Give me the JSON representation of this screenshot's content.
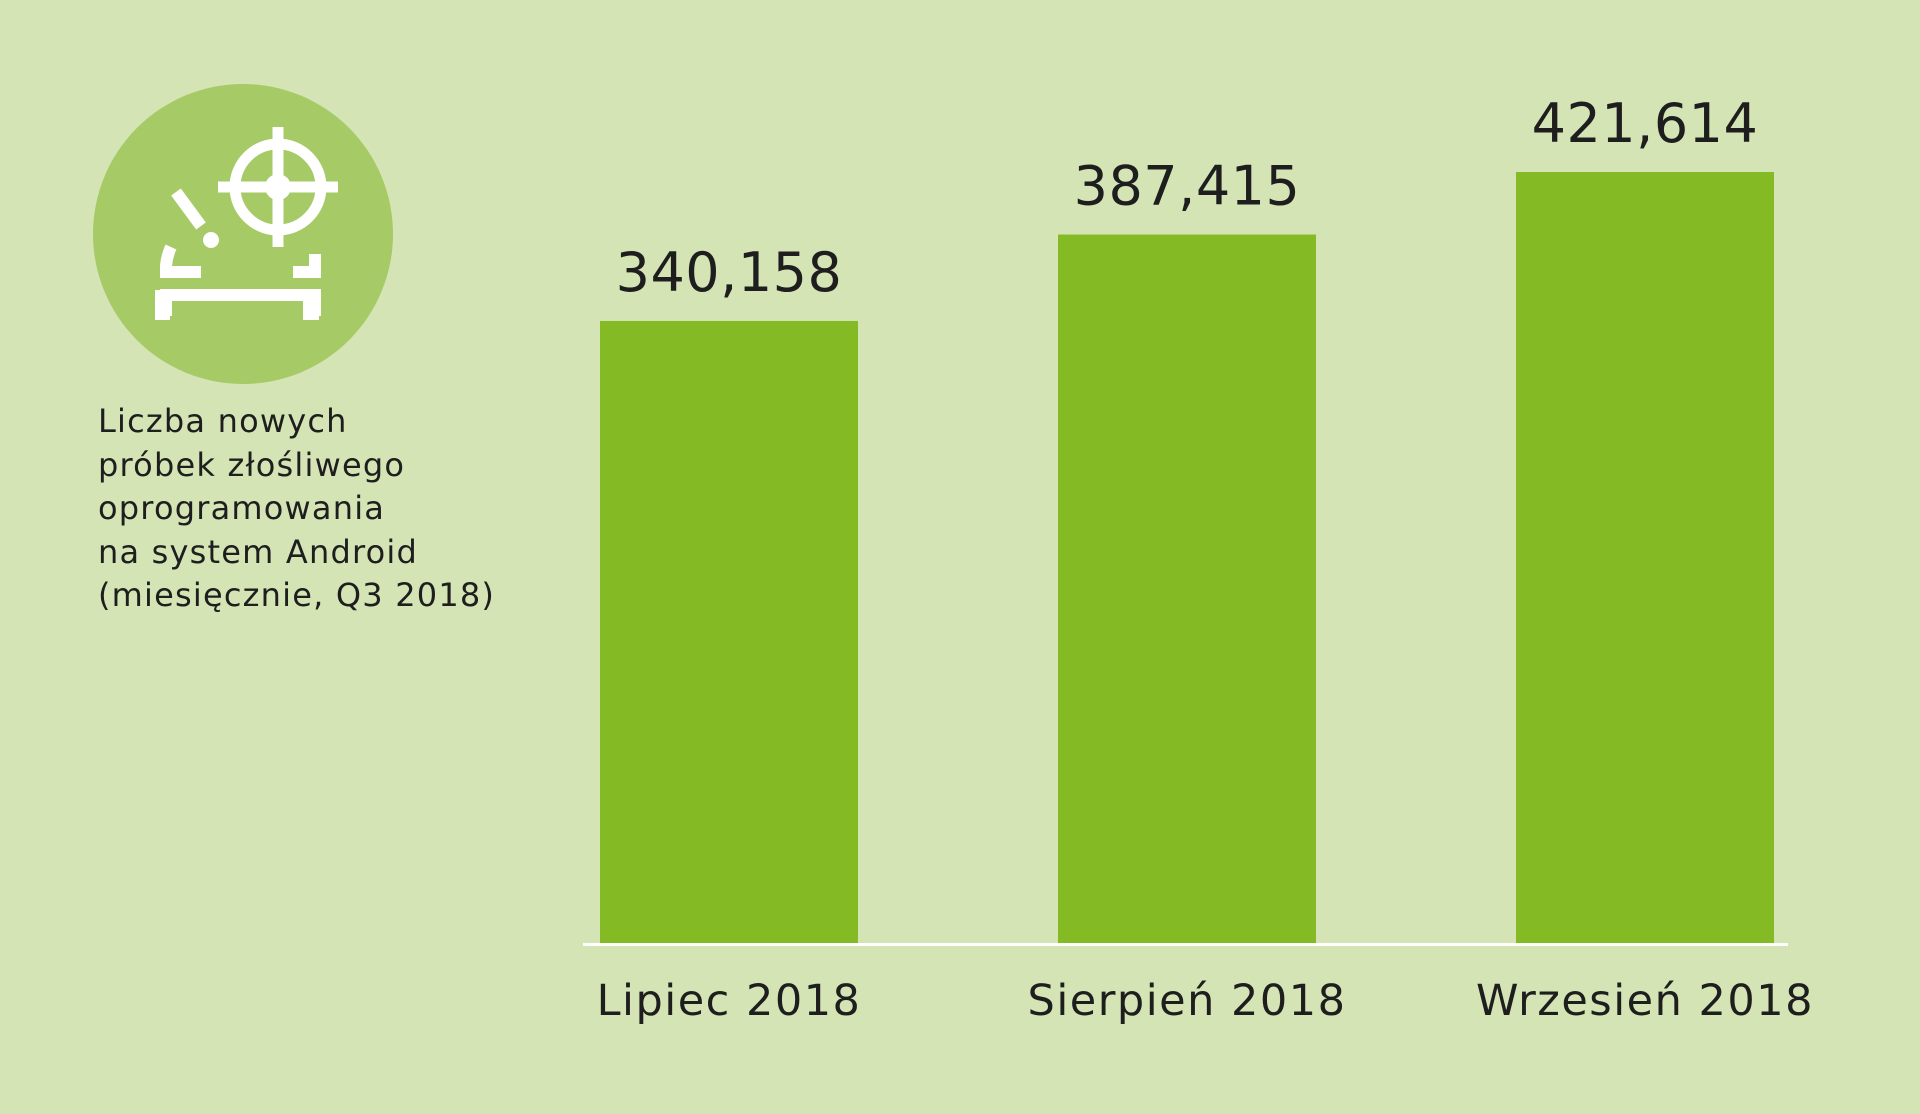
{
  "caption": {
    "lines": [
      "Liczba nowych",
      "próbek złośliwego",
      "oprogramowania",
      "na system Android",
      "(miesięcznie, Q3 2018)"
    ]
  },
  "icon": "android-crosshair-icon",
  "colors": {
    "background": "#d4e4b4",
    "bar": "#84ba24",
    "icon_circle": "#a6ca66",
    "baseline": "#ffffff",
    "text": "#1e1e1e"
  },
  "chart_data": {
    "type": "bar",
    "categories": [
      "Lipiec 2018",
      "Sierpień 2018",
      "Wrzesień 2018"
    ],
    "values": [
      340158,
      387415,
      421614
    ],
    "value_labels": [
      "340,158",
      "387,415",
      "421,614"
    ],
    "title": "",
    "xlabel": "",
    "ylabel": "",
    "ylim": [
      0,
      421614
    ],
    "grid": false,
    "legend": "none"
  }
}
